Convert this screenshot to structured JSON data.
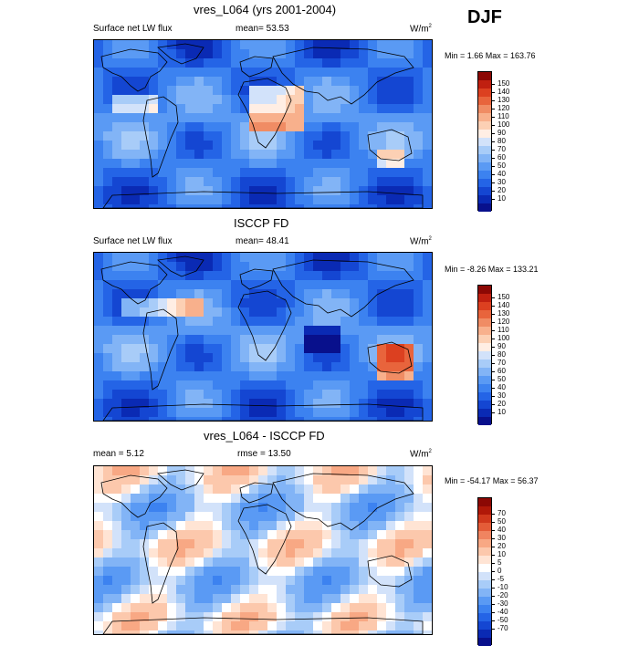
{
  "season": "DJF",
  "colors": {
    "palette_abs": [
      "#08108c",
      "#0a2ab4",
      "#1446d2",
      "#2464e6",
      "#3c82f0",
      "#5a9af4",
      "#82b4f6",
      "#a8ccf8",
      "#d2e2fa",
      "#ffeee4",
      "#fcd0b4",
      "#f8b08c",
      "#f08c64",
      "#e8643c",
      "#dc4020",
      "#c02010",
      "#8c0804"
    ],
    "palette_diff": [
      "#08108c",
      "#0a2ab4",
      "#1446d2",
      "#2464e6",
      "#3c82f0",
      "#5a9af4",
      "#82b4f6",
      "#a8ccf8",
      "#d2e2fa",
      "#ffffff",
      "#ffe4d4",
      "#fcc8ac",
      "#f8a884",
      "#f08460",
      "#e45c38",
      "#d0381c",
      "#b01808",
      "#8c0804"
    ]
  },
  "panels": [
    {
      "title": "vres_L064 (yrs 2001-2004)",
      "left_label": "Surface net LW flux",
      "center_label": "mean=  53.53",
      "units": "W/m",
      "units_sup": "2",
      "minmax": "Min =   1.66 Max = 163.76"
    },
    {
      "title": "ISCCP FD",
      "left_label": "Surface net LW flux",
      "center_label": "mean=  48.41",
      "units": "W/m",
      "units_sup": "2",
      "minmax": "Min =  -8.26 Max = 133.21"
    },
    {
      "title": "vres_L064 - ISCCP FD",
      "left_label": "mean =   5.12",
      "center_label": "rmse =  13.50",
      "units": "W/m",
      "units_sup": "2",
      "minmax": "Min = -54.17 Max =  56.37"
    }
  ],
  "chart_data": [
    {
      "type": "heatmap",
      "title": "vres_L064 (yrs 2001-2004)",
      "variable": "Surface net LW flux",
      "units": "W/m2",
      "mean": 53.53,
      "min": 1.66,
      "max": 163.76,
      "colorbar_levels": [
        150,
        140,
        130,
        120,
        110,
        100,
        90,
        80,
        70,
        60,
        50,
        40,
        30,
        20,
        10
      ]
    },
    {
      "type": "heatmap",
      "title": "ISCCP FD",
      "variable": "Surface net LW flux",
      "units": "W/m2",
      "mean": 48.41,
      "min": -8.26,
      "max": 133.21,
      "colorbar_levels": [
        150,
        140,
        130,
        120,
        110,
        100,
        90,
        80,
        70,
        60,
        50,
        40,
        30,
        20,
        10
      ]
    },
    {
      "type": "heatmap",
      "title": "vres_L064 - ISCCP FD",
      "units": "W/m2",
      "mean": 5.12,
      "rmse": 13.5,
      "min": -54.17,
      "max": 56.37,
      "colorbar_levels": [
        70,
        50,
        40,
        30,
        20,
        10,
        5,
        0,
        -5,
        -10,
        -20,
        -30,
        -40,
        -50,
        -70
      ]
    }
  ]
}
